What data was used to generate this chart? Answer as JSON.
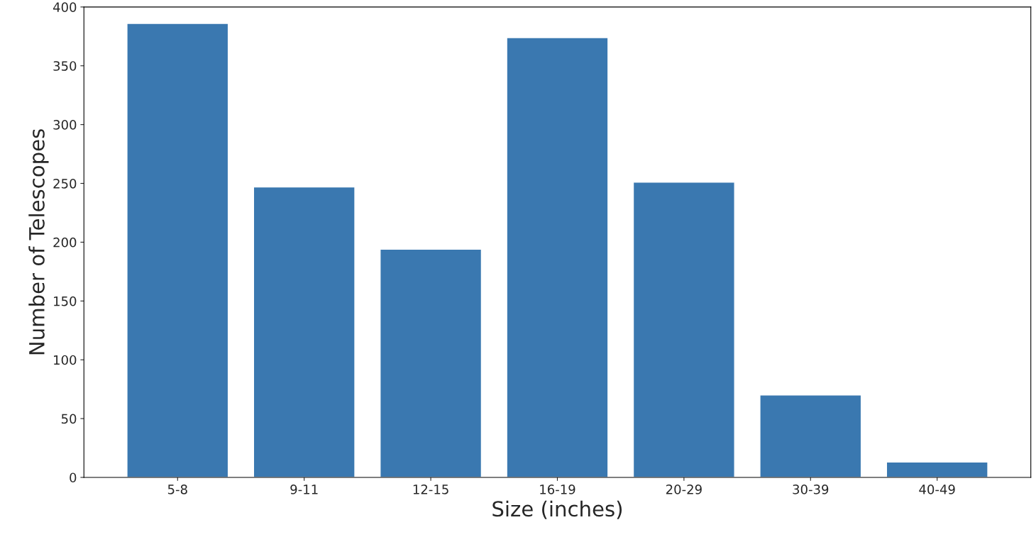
{
  "chart_data": {
    "type": "bar",
    "xlabel": "Size (inches)",
    "ylabel": "Number of Telescopes",
    "categories": [
      "5-8",
      "9-11",
      "12-15",
      "16-19",
      "20-29",
      "30-39",
      "40-49"
    ],
    "values": [
      386,
      247,
      194,
      374,
      251,
      70,
      13
    ],
    "color": "#3a78b0",
    "ylim": [
      0,
      400
    ],
    "yticks": [
      0,
      50,
      100,
      150,
      200,
      250,
      300,
      350,
      400
    ],
    "grid": false
  }
}
